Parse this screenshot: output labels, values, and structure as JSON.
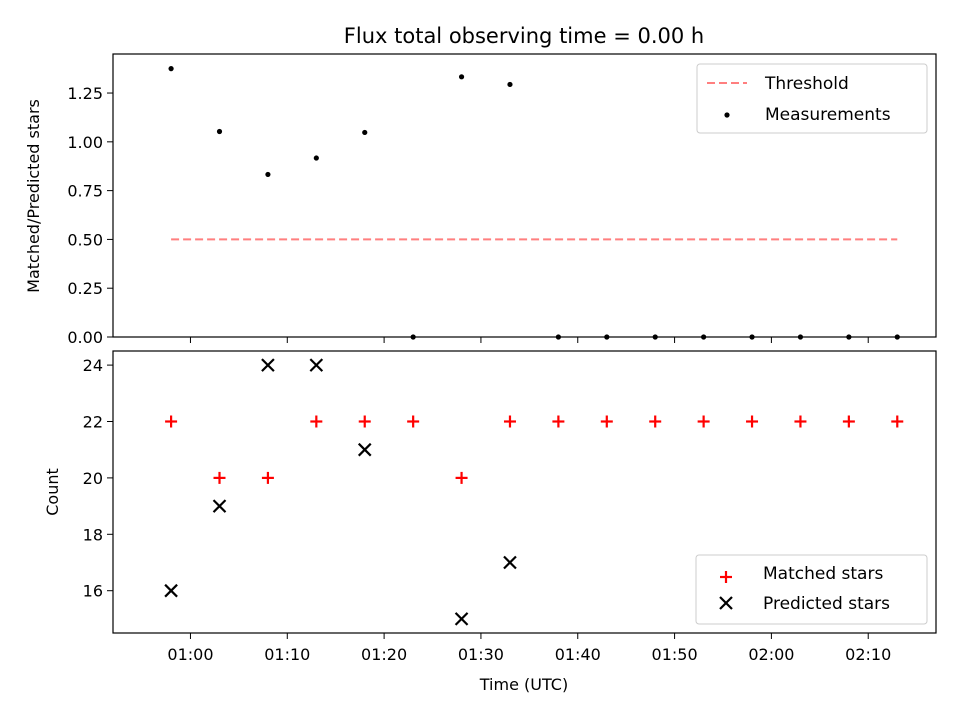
{
  "chart_data": [
    {
      "type": "scatter",
      "title": "Flux total observing time = 0.00 h",
      "xlabel": "",
      "ylabel": "Matched/Predicted stars",
      "ylim": [
        0,
        1.45
      ],
      "yticks": [
        "0.00",
        "0.25",
        "0.50",
        "0.75",
        "1.00",
        "1.25"
      ],
      "legend_position": "top-right",
      "series": [
        {
          "name": "Threshold",
          "kind": "dashed-line",
          "color": "#ff7f7f",
          "x": [
            "00:58",
            "02:13"
          ],
          "y": [
            0.5,
            0.5
          ]
        },
        {
          "name": "Measurements",
          "kind": "dot",
          "color": "#000000",
          "x": [
            "00:58",
            "01:03",
            "01:08",
            "01:13",
            "01:18",
            "01:23",
            "01:28",
            "01:33",
            "01:38",
            "01:43",
            "01:48",
            "01:53",
            "01:58",
            "02:03",
            "02:08",
            "02:13"
          ],
          "y": [
            1.375,
            1.053,
            0.833,
            0.917,
            1.048,
            0.0,
            1.333,
            1.294,
            0.0,
            0.0,
            0.0,
            0.0,
            0.0,
            0.0,
            0.0,
            0.0
          ]
        }
      ]
    },
    {
      "type": "scatter",
      "title": "",
      "xlabel": "Time (UTC)",
      "ylabel": "Count",
      "ylim": [
        14.5,
        24.5
      ],
      "yticks": [
        "16",
        "18",
        "20",
        "22",
        "24"
      ],
      "xlim": [
        "00:52",
        "02:17"
      ],
      "xticks": [
        "01:00",
        "01:10",
        "01:20",
        "01:30",
        "01:40",
        "01:50",
        "02:00",
        "02:10"
      ],
      "legend_position": "bottom-right",
      "series": [
        {
          "name": "Matched stars",
          "kind": "plus",
          "color": "#ff0000",
          "x": [
            "00:58",
            "01:03",
            "01:08",
            "01:13",
            "01:18",
            "01:23",
            "01:28",
            "01:33",
            "01:38",
            "01:43",
            "01:48",
            "01:53",
            "01:58",
            "02:03",
            "02:08",
            "02:13"
          ],
          "y": [
            22,
            20,
            20,
            22,
            22,
            22,
            20,
            22,
            22,
            22,
            22,
            22,
            22,
            22,
            22,
            22
          ]
        },
        {
          "name": "Predicted stars",
          "kind": "cross",
          "color": "#000000",
          "x": [
            "00:58",
            "01:03",
            "01:08",
            "01:13",
            "01:18",
            "01:28",
            "01:33"
          ],
          "y": [
            16,
            19,
            24,
            24,
            21,
            15,
            17
          ]
        }
      ]
    }
  ]
}
